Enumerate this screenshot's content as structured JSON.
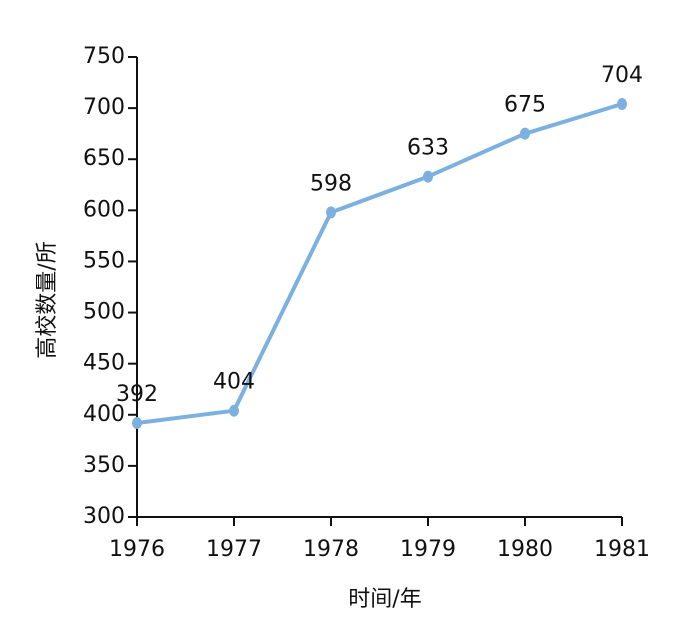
{
  "chart_data": {
    "type": "line",
    "x_label": "时间/年",
    "y_label": "高校数量/所",
    "x": [
      1976,
      1977,
      1978,
      1979,
      1980,
      1981
    ],
    "values": [
      392,
      404,
      598,
      633,
      675,
      704
    ],
    "color": "#7cb0df",
    "xlim": [
      1976,
      1981
    ],
    "xticks": [
      1976,
      1977,
      1978,
      1979,
      1980,
      1981
    ],
    "ylim": [
      300,
      750
    ],
    "yticks": [
      300,
      350,
      400,
      450,
      500,
      550,
      600,
      650,
      700,
      750
    ],
    "grid": false
  }
}
